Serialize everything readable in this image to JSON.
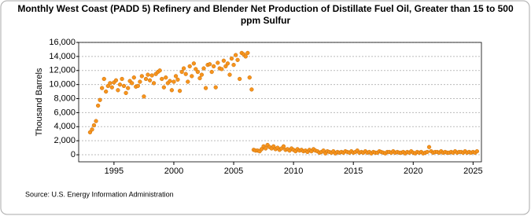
{
  "chart_data": {
    "type": "scatter",
    "title": "Monthly West Coast (PADD 5) Refinery and Blender Net Production of Distillate Fuel Oil, Greater than 15 to 500 ppm Sulfur",
    "y_label": "Thousand Barrels",
    "source": "Source: U.S. Energy Information Administration",
    "color": "#f7941d",
    "grid": true,
    "xlim": [
      1992.05,
      2025.7
    ],
    "ylim": [
      -1000,
      16000
    ],
    "xticks": [
      1995,
      2000,
      2005,
      2010,
      2015,
      2020,
      2025
    ],
    "yticks": [
      0,
      {
        "value": 2000,
        "label": "2,000"
      },
      {
        "value": 4000,
        "label": "4,000"
      },
      {
        "value": 6000,
        "label": "6,000"
      },
      {
        "value": 8000,
        "label": "8,000"
      },
      {
        "value": 10000,
        "label": "10,000"
      },
      {
        "value": 12000,
        "label": "12,000"
      },
      {
        "value": 14000,
        "label": "14,000"
      },
      {
        "value": 16000,
        "label": "16,000"
      }
    ],
    "x": [
      1993.0,
      1993.17,
      1993.33,
      1993.5,
      1993.67,
      1993.83,
      1994.0,
      1994.17,
      1994.33,
      1994.5,
      1994.67,
      1994.83,
      1995.0,
      1995.17,
      1995.33,
      1995.5,
      1995.67,
      1995.83,
      1996.0,
      1996.17,
      1996.33,
      1996.5,
      1996.67,
      1996.83,
      1997.0,
      1997.17,
      1997.33,
      1997.5,
      1997.67,
      1997.83,
      1998.0,
      1998.17,
      1998.33,
      1998.5,
      1998.67,
      1998.83,
      1999.0,
      1999.17,
      1999.33,
      1999.5,
      1999.67,
      1999.83,
      2000.0,
      2000.17,
      2000.33,
      2000.5,
      2000.67,
      2000.83,
      2001.0,
      2001.17,
      2001.33,
      2001.5,
      2001.67,
      2001.83,
      2002.0,
      2002.17,
      2002.33,
      2002.5,
      2002.67,
      2002.83,
      2003.0,
      2003.17,
      2003.33,
      2003.5,
      2003.67,
      2003.83,
      2004.0,
      2004.17,
      2004.33,
      2004.5,
      2004.67,
      2004.83,
      2005.0,
      2005.17,
      2005.33,
      2005.5,
      2005.67,
      2005.83,
      2006.0,
      2006.17,
      2006.33,
      2006.5,
      2006.67,
      2006.83,
      2007.0,
      2007.17,
      2007.33,
      2007.5,
      2007.67,
      2007.83,
      2008.0,
      2008.17,
      2008.33,
      2008.5,
      2008.67,
      2008.83,
      2009.0,
      2009.17,
      2009.33,
      2009.5,
      2009.67,
      2009.83,
      2010.0,
      2010.17,
      2010.33,
      2010.5,
      2010.67,
      2010.83,
      2011.0,
      2011.17,
      2011.33,
      2011.5,
      2011.67,
      2011.83,
      2012.0,
      2012.17,
      2012.33,
      2012.5,
      2012.67,
      2012.83,
      2013.0,
      2013.17,
      2013.33,
      2013.5,
      2013.67,
      2013.83,
      2014.0,
      2014.17,
      2014.33,
      2014.5,
      2014.67,
      2014.83,
      2015.0,
      2015.17,
      2015.33,
      2015.5,
      2015.67,
      2015.83,
      2016.0,
      2016.17,
      2016.33,
      2016.5,
      2016.67,
      2016.83,
      2017.0,
      2017.17,
      2017.33,
      2017.5,
      2017.67,
      2017.83,
      2018.0,
      2018.17,
      2018.33,
      2018.5,
      2018.67,
      2018.83,
      2019.0,
      2019.17,
      2019.33,
      2019.5,
      2019.67,
      2019.83,
      2020.0,
      2020.17,
      2020.33,
      2020.5,
      2020.67,
      2020.83,
      2021.0,
      2021.17,
      2021.33,
      2021.5,
      2021.67,
      2021.83,
      2022.0,
      2022.17,
      2022.33,
      2022.5,
      2022.67,
      2022.83,
      2023.0,
      2023.17,
      2023.33,
      2023.5,
      2023.67,
      2023.83,
      2024.0,
      2024.17,
      2024.33,
      2024.5,
      2024.67,
      2024.83,
      2025.0,
      2025.17,
      2025.33
    ],
    "values": [
      3200,
      3600,
      4200,
      4800,
      7000,
      7800,
      9500,
      10800,
      9000,
      9800,
      10200,
      9600,
      10300,
      10600,
      9200,
      10000,
      10800,
      9800,
      8800,
      9500,
      10500,
      10200,
      11000,
      9700,
      9800,
      10400,
      11200,
      8300,
      10800,
      11400,
      10600,
      11300,
      10200,
      11500,
      11800,
      12000,
      10800,
      9600,
      11000,
      10200,
      10500,
      9200,
      10400,
      11200,
      10700,
      9100,
      11800,
      12300,
      11500,
      10400,
      12600,
      11200,
      13000,
      12200,
      11800,
      10900,
      11400,
      12300,
      9500,
      12800,
      12900,
      11800,
      12600,
      9600,
      13100,
      12300,
      12200,
      13400,
      12600,
      13000,
      11400,
      13700,
      12800,
      14200,
      13500,
      10800,
      14500,
      14300,
      14000,
      14500,
      11000,
      9300,
      700,
      600,
      600,
      500,
      800,
      1200,
      900,
      1400,
      1100,
      900,
      1200,
      800,
      1000,
      700,
      900,
      1200,
      700,
      800,
      600,
      900,
      700,
      500,
      800,
      600,
      700,
      500,
      600,
      400,
      700,
      500,
      800,
      600,
      500,
      300,
      400,
      600,
      200,
      500,
      400,
      300,
      500,
      200,
      400,
      300,
      400,
      300,
      500,
      400,
      300,
      500,
      300,
      400,
      600,
      300,
      400,
      300,
      500,
      300,
      400,
      200,
      400,
      300,
      300,
      500,
      400,
      300,
      200,
      400,
      400,
      300,
      500,
      300,
      400,
      300,
      300,
      400,
      200,
      400,
      300,
      500,
      300,
      200,
      400,
      300,
      400,
      200,
      300,
      400,
      1100,
      500,
      300,
      400,
      400,
      300,
      500,
      300,
      400,
      300,
      300,
      400,
      300,
      500,
      300,
      400,
      400,
      300,
      500,
      300,
      400,
      300,
      400,
      300,
      500
    ]
  }
}
